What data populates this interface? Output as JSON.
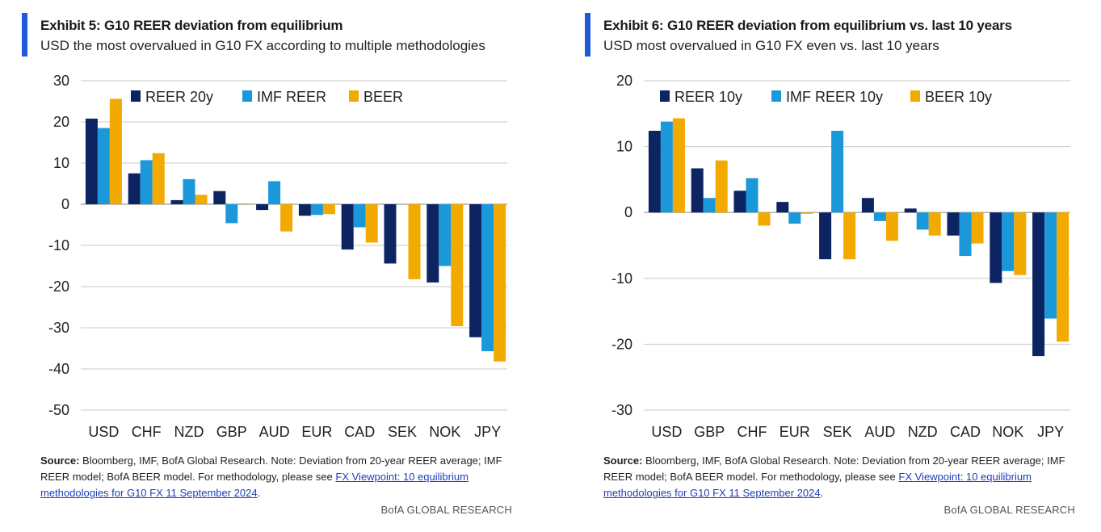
{
  "colors": {
    "navy": "#0c2461",
    "blue": "#1b98d9",
    "gold": "#f2a900",
    "accent": "#1f5bd6",
    "grid": "#c8c8c8"
  },
  "panels": [
    {
      "title": "Exhibit 5: G10 REER deviation from equilibrium",
      "subtitle": "USD the most overvalued in G10 FX according to multiple methodologies",
      "note": {
        "source_label": "Source:",
        "text": " Bloomberg, IMF, BofA Global Research. Note: Deviation from 20-year REER average; IMF REER model; BofA BEER model. For methodology, please see ",
        "link": "FX Viewpoint: 10 equilibrium methodologies for G10 FX 11 September 2024",
        "end": "."
      },
      "footer": "BofA GLOBAL RESEARCH"
    },
    {
      "title": "Exhibit 6: G10 REER deviation from equilibrium vs. last 10 years",
      "subtitle": "USD most overvalued in G10 FX even vs. last 10 years",
      "note": {
        "source_label": "Source:",
        "text": " Bloomberg, IMF, BofA Global Research. Note: Deviation from 20-year REER average; IMF REER model; BofA BEER model. For methodology, please see ",
        "link": "FX Viewpoint: 10 equilibrium methodologies for G10 FX 11 September 2024",
        "end": "."
      },
      "footer": "BofA GLOBAL RESEARCH"
    }
  ],
  "chart_data": [
    {
      "type": "bar",
      "categories": [
        "USD",
        "CHF",
        "NZD",
        "GBP",
        "AUD",
        "EUR",
        "CAD",
        "SEK",
        "NOK",
        "JPY"
      ],
      "series": [
        {
          "name": "REER 20y",
          "color": "#0c2461",
          "values": [
            20.8,
            7.5,
            1.0,
            3.2,
            -1.4,
            -2.8,
            -11.0,
            -14.4,
            -19.0,
            -32.3
          ]
        },
        {
          "name": "IMF REER",
          "color": "#1b98d9",
          "values": [
            18.5,
            10.7,
            6.1,
            -4.6,
            5.6,
            -2.6,
            -5.6,
            0.0,
            -15.0,
            -35.7
          ]
        },
        {
          "name": "BEER",
          "color": "#f2a900",
          "values": [
            25.6,
            12.4,
            2.3,
            0.2,
            -6.6,
            -2.4,
            -9.3,
            -18.2,
            -29.6,
            -38.2
          ]
        }
      ],
      "title": "Exhibit 5: G10 REER deviation from equilibrium",
      "xlabel": "",
      "ylabel": "",
      "ylim": [
        -50,
        30
      ],
      "yticks": [
        30,
        20,
        10,
        0,
        -10,
        -20,
        -30,
        -40,
        -50
      ],
      "grid": true,
      "legend": "top"
    },
    {
      "type": "bar",
      "categories": [
        "USD",
        "GBP",
        "CHF",
        "EUR",
        "SEK",
        "AUD",
        "NZD",
        "CAD",
        "NOK",
        "JPY"
      ],
      "series": [
        {
          "name": "REER 10y",
          "color": "#0c2461",
          "values": [
            12.4,
            6.7,
            3.3,
            1.6,
            -7.1,
            2.2,
            0.6,
            -3.5,
            -10.7,
            -21.8
          ]
        },
        {
          "name": "IMF REER 10y",
          "color": "#1b98d9",
          "values": [
            13.8,
            2.2,
            5.2,
            -1.7,
            12.4,
            -1.3,
            -2.6,
            -6.6,
            -8.9,
            -16.1
          ]
        },
        {
          "name": "BEER 10y",
          "color": "#f2a900",
          "values": [
            14.3,
            7.9,
            -2.0,
            -0.2,
            -7.1,
            -4.3,
            -3.5,
            -4.7,
            -9.5,
            -19.6
          ]
        }
      ],
      "title": "Exhibit 6: G10 REER deviation from equilibrium vs. last 10 years",
      "xlabel": "",
      "ylabel": "",
      "ylim": [
        -30,
        20
      ],
      "yticks": [
        20,
        10,
        0,
        -10,
        -20,
        -30
      ],
      "grid": true,
      "legend": "top"
    }
  ]
}
